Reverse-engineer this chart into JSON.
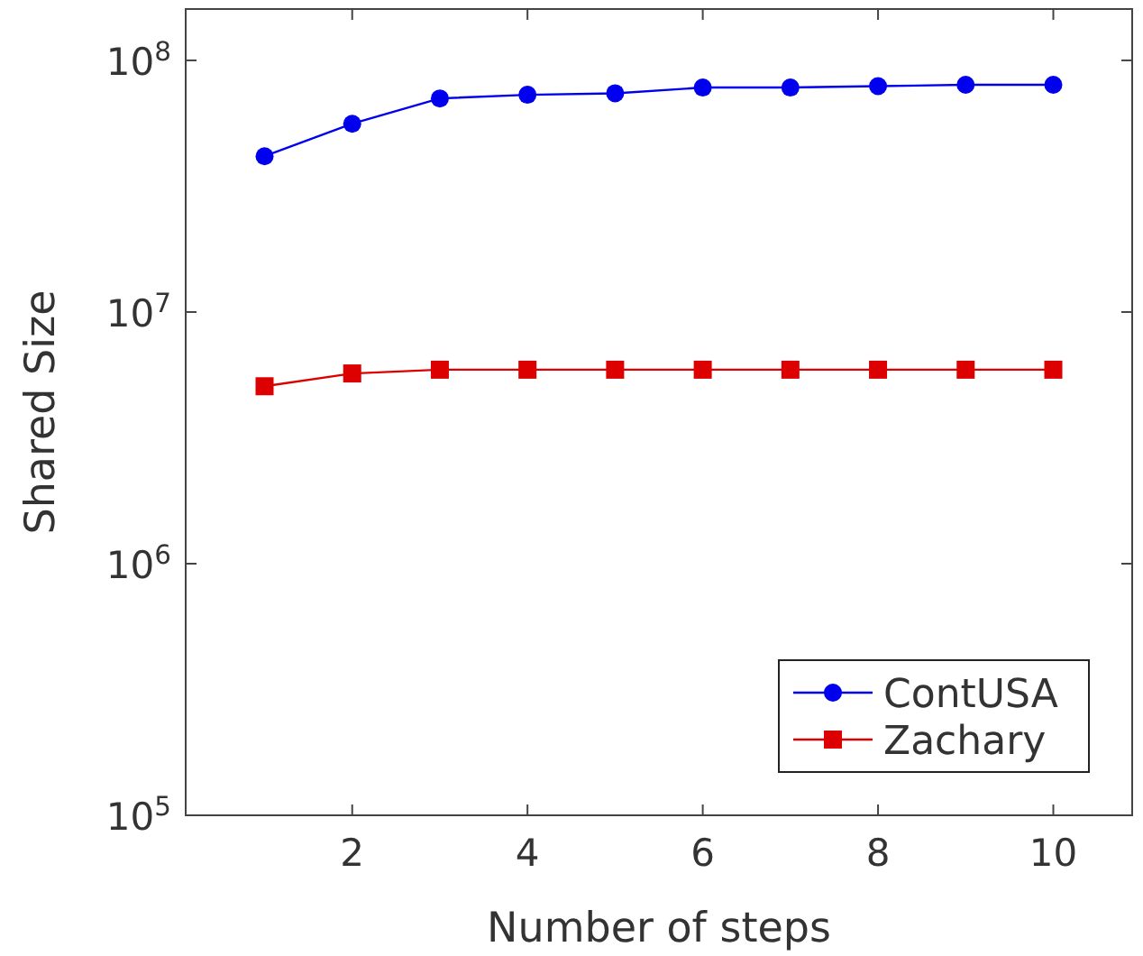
{
  "chart_data": {
    "type": "line",
    "xlabel": "Number of steps",
    "ylabel": "Shared Size",
    "log": "y",
    "grid": false,
    "legend": "bottom right",
    "marker": "circle",
    "line_style": "solid",
    "x": [
      1,
      2,
      3,
      4,
      5,
      6,
      7,
      8,
      9,
      10
    ],
    "xlim": [
      0.1,
      10.9
    ],
    "xticks": [
      2,
      4,
      6,
      8,
      10
    ],
    "ylim": [
      100000,
      160000000
    ],
    "yticks": [
      {
        "value": 100000,
        "label": "10$^{5}$"
      },
      {
        "value": 1000000,
        "label": "10$^{6}$"
      },
      {
        "value": 10000000,
        "label": "10$^{7}$"
      },
      {
        "value": 100000000,
        "label": "10$^{8}$"
      }
    ],
    "series": [
      {
        "name": "ContUSA",
        "color": "#0000ee",
        "marker": "circle",
        "values": [
          41600000,
          56000000,
          70600000,
          73000000,
          74000000,
          78000000,
          78000000,
          79000000,
          80000000,
          80000000
        ]
      },
      {
        "name": "Zachary",
        "color": "#dd0000",
        "marker": "square",
        "values": [
          5070000,
          5700000,
          5900000,
          5900000,
          5900000,
          5900000,
          5900000,
          5900000,
          5900000,
          5900000
        ]
      }
    ]
  }
}
